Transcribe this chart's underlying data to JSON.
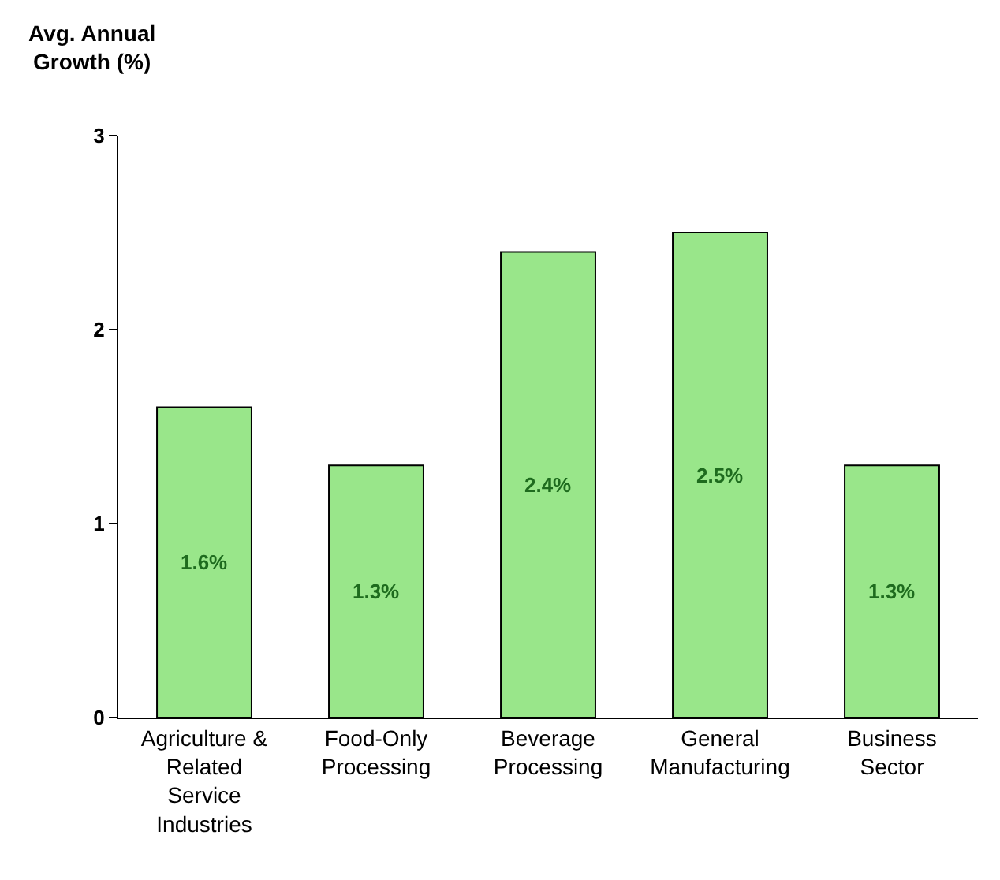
{
  "chart_data": {
    "type": "bar",
    "ylabel": "Avg. Annual Growth (%)",
    "categories": [
      "Agriculture & Related Service Industries",
      "Food-Only Processing",
      "Beverage Processing",
      "General Manufacturing",
      "Business Sector"
    ],
    "values": [
      1.6,
      1.3,
      2.4,
      2.5,
      1.3
    ],
    "value_labels": [
      "1.6%",
      "1.3%",
      "2.4%",
      "2.5%",
      "1.3%"
    ],
    "color": "#99e68a",
    "ylim": [
      0,
      3
    ],
    "yticks": [
      0,
      1,
      2,
      3
    ],
    "grid": false
  }
}
